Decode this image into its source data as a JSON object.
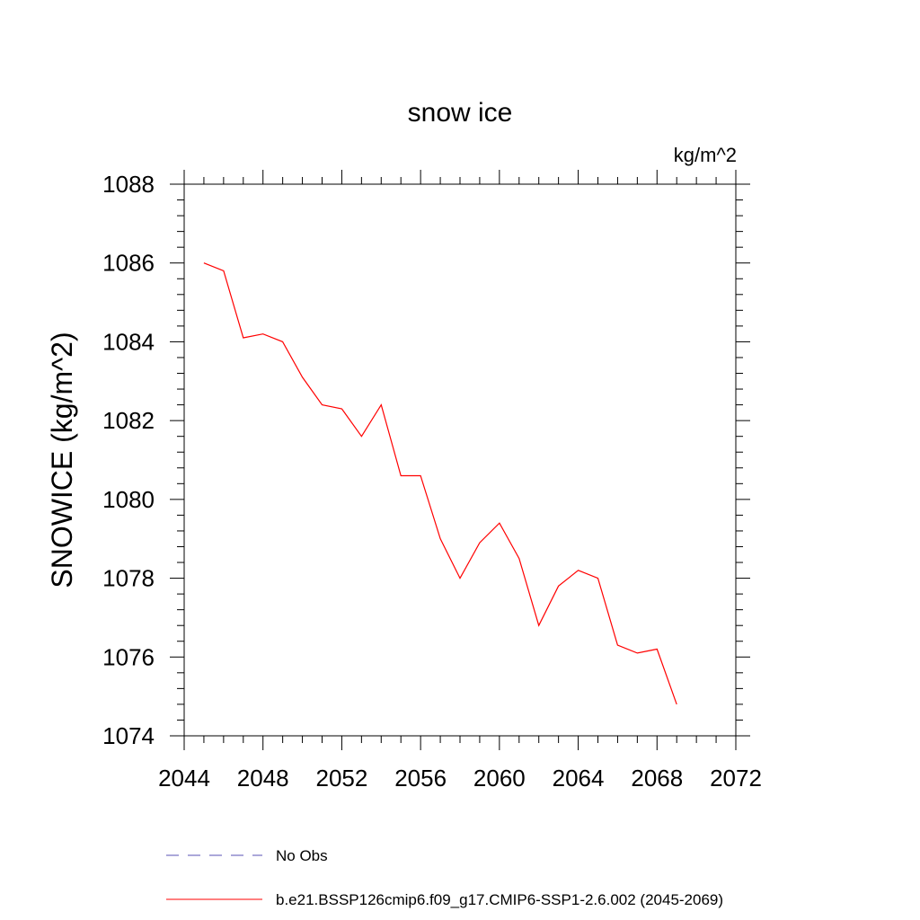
{
  "chart_data": {
    "type": "line",
    "title": "snow ice",
    "units": "kg/m^2",
    "ylabel": "SNOWICE  (kg/m^2)",
    "xlabel": "",
    "xlim": [
      2044,
      2072
    ],
    "ylim": [
      1074,
      1088
    ],
    "x_ticks": [
      2044,
      2048,
      2052,
      2056,
      2060,
      2064,
      2068,
      2072
    ],
    "y_ticks": [
      1074,
      1076,
      1078,
      1080,
      1082,
      1084,
      1086,
      1088
    ],
    "grid": false,
    "legend_position": "bottom",
    "series": [
      {
        "name": "No Obs",
        "style": "dashed",
        "color": "#5a50b4",
        "x": [],
        "y": []
      },
      {
        "name": "b.e21.BSSP126cmip6.f09_g17.CMIP6-SSP1-2.6.002 (2045-2069)",
        "style": "solid",
        "color": "#ff0000",
        "x": [
          2045,
          2046,
          2047,
          2048,
          2049,
          2050,
          2051,
          2052,
          2053,
          2054,
          2055,
          2056,
          2057,
          2058,
          2059,
          2060,
          2061,
          2062,
          2063,
          2064,
          2065,
          2066,
          2067,
          2068,
          2069
        ],
        "y": [
          1086.0,
          1085.8,
          1084.1,
          1084.2,
          1084.0,
          1083.1,
          1082.4,
          1082.3,
          1081.6,
          1082.4,
          1080.6,
          1080.6,
          1079.0,
          1078.0,
          1078.9,
          1079.4,
          1078.5,
          1076.8,
          1077.8,
          1078.2,
          1078.0,
          1076.3,
          1076.1,
          1076.2,
          1074.8
        ]
      }
    ]
  }
}
